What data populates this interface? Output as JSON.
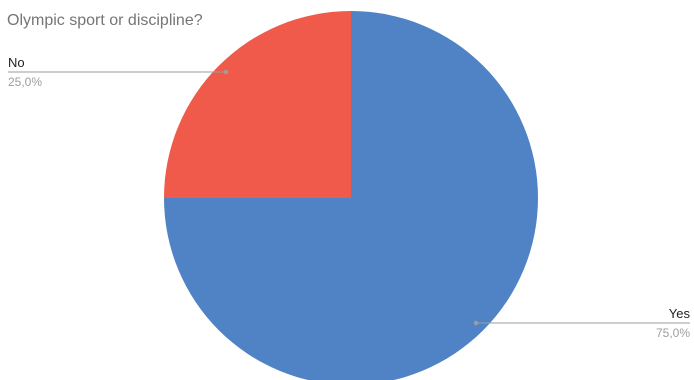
{
  "chart_data": {
    "type": "pie",
    "title": "Olympic sport or discipline?",
    "slices": [
      {
        "label": "Yes",
        "value": 75.0,
        "percent_label": "75,0%",
        "color": "#5083c6"
      },
      {
        "label": "No",
        "value": 25.0,
        "percent_label": "25,0%",
        "color": "#ef5a4a"
      }
    ],
    "start_angle": "12 o'clock",
    "direction": "clockwise",
    "legend": "none (leader-line labels)"
  }
}
